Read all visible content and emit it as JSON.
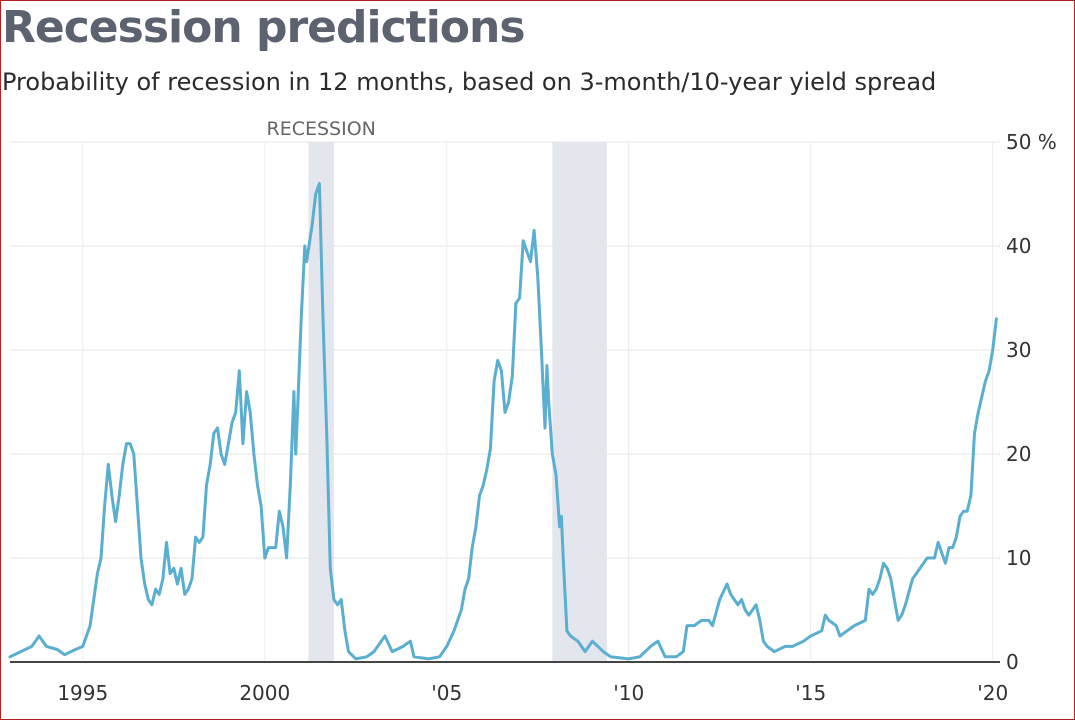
{
  "title": "Recession predictions",
  "subtitle": "Probability of recession in 12 months, based on 3-month/10-year yield spread",
  "chart_data": {
    "type": "line",
    "title": "Recession predictions",
    "subtitle": "Probability of recession in 12 months, based on 3-month/10-year yield spread",
    "xlim": [
      1993,
      2020.2
    ],
    "ylim": [
      0,
      50
    ],
    "grid": true,
    "legend": "none",
    "line_color": "#5aaed0",
    "shade_color": "#e4e6ed",
    "x_ticks": [
      {
        "value": 1995,
        "label": "1995"
      },
      {
        "value": 2000,
        "label": "2000"
      },
      {
        "value": 2005,
        "label": "'05"
      },
      {
        "value": 2010,
        "label": "'10"
      },
      {
        "value": 2015,
        "label": "'15"
      },
      {
        "value": 2020,
        "label": "'20"
      }
    ],
    "y_ticks": [
      {
        "value": 0,
        "label": "0"
      },
      {
        "value": 10,
        "label": "10"
      },
      {
        "value": 20,
        "label": "20"
      },
      {
        "value": 30,
        "label": "30"
      },
      {
        "value": 40,
        "label": "40"
      },
      {
        "value": 50,
        "label": "50 %"
      }
    ],
    "recessions": [
      {
        "start": 2001.2,
        "end": 2001.9,
        "label": "RECESSION"
      },
      {
        "start": 2007.9,
        "end": 2009.4,
        "label": ""
      }
    ],
    "series": [
      {
        "points": [
          [
            1993.0,
            0.5
          ],
          [
            1993.3,
            1
          ],
          [
            1993.6,
            1.5
          ],
          [
            1993.8,
            2.5
          ],
          [
            1994.0,
            1.5
          ],
          [
            1994.3,
            1.2
          ],
          [
            1994.5,
            0.7
          ],
          [
            1994.8,
            1.2
          ],
          [
            1995.0,
            1.5
          ],
          [
            1995.2,
            3.5
          ],
          [
            1995.4,
            8.5
          ],
          [
            1995.5,
            10
          ],
          [
            1995.6,
            15
          ],
          [
            1995.7,
            19
          ],
          [
            1995.8,
            16
          ],
          [
            1995.9,
            13.5
          ],
          [
            1996.0,
            16
          ],
          [
            1996.1,
            19
          ],
          [
            1996.2,
            21
          ],
          [
            1996.3,
            21
          ],
          [
            1996.4,
            20
          ],
          [
            1996.5,
            15
          ],
          [
            1996.6,
            10
          ],
          [
            1996.7,
            7.5
          ],
          [
            1996.8,
            6
          ],
          [
            1996.9,
            5.5
          ],
          [
            1997.0,
            7
          ],
          [
            1997.1,
            6.5
          ],
          [
            1997.2,
            8
          ],
          [
            1997.3,
            11.5
          ],
          [
            1997.4,
            8.5
          ],
          [
            1997.5,
            9
          ],
          [
            1997.6,
            7.5
          ],
          [
            1997.7,
            9
          ],
          [
            1997.8,
            6.5
          ],
          [
            1997.9,
            7
          ],
          [
            1998.0,
            8
          ],
          [
            1998.1,
            12
          ],
          [
            1998.2,
            11.5
          ],
          [
            1998.3,
            12
          ],
          [
            1998.4,
            17
          ],
          [
            1998.5,
            19
          ],
          [
            1998.6,
            22
          ],
          [
            1998.7,
            22.5
          ],
          [
            1998.8,
            20
          ],
          [
            1998.9,
            19
          ],
          [
            1999.0,
            21
          ],
          [
            1999.1,
            23
          ],
          [
            1999.2,
            24
          ],
          [
            1999.3,
            28
          ],
          [
            1999.4,
            21
          ],
          [
            1999.5,
            26
          ],
          [
            1999.6,
            24
          ],
          [
            1999.7,
            20
          ],
          [
            1999.8,
            17
          ],
          [
            1999.9,
            15
          ],
          [
            2000.0,
            10
          ],
          [
            2000.1,
            11
          ],
          [
            2000.3,
            11
          ],
          [
            2000.4,
            14.5
          ],
          [
            2000.5,
            13
          ],
          [
            2000.6,
            10
          ],
          [
            2000.7,
            17
          ],
          [
            2000.8,
            26
          ],
          [
            2000.85,
            20
          ],
          [
            2000.9,
            24
          ],
          [
            2001.0,
            33
          ],
          [
            2001.1,
            40
          ],
          [
            2001.15,
            38.5
          ],
          [
            2001.3,
            42
          ],
          [
            2001.4,
            45
          ],
          [
            2001.5,
            46
          ],
          [
            2001.6,
            33
          ],
          [
            2001.7,
            22
          ],
          [
            2001.8,
            9
          ],
          [
            2001.9,
            6
          ],
          [
            2002.0,
            5.5
          ],
          [
            2002.1,
            6
          ],
          [
            2002.2,
            3
          ],
          [
            2002.3,
            1
          ],
          [
            2002.5,
            0.3
          ],
          [
            2002.8,
            0.5
          ],
          [
            2003.0,
            1
          ],
          [
            2003.3,
            2.5
          ],
          [
            2003.5,
            1
          ],
          [
            2003.8,
            1.5
          ],
          [
            2004.0,
            2
          ],
          [
            2004.1,
            0.5
          ],
          [
            2004.5,
            0.3
          ],
          [
            2004.8,
            0.5
          ],
          [
            2005.0,
            1.5
          ],
          [
            2005.2,
            3
          ],
          [
            2005.4,
            5
          ],
          [
            2005.5,
            7
          ],
          [
            2005.6,
            8
          ],
          [
            2005.7,
            11
          ],
          [
            2005.8,
            13
          ],
          [
            2005.9,
            16
          ],
          [
            2006.0,
            17
          ],
          [
            2006.1,
            18.5
          ],
          [
            2006.2,
            20.5
          ],
          [
            2006.3,
            27
          ],
          [
            2006.4,
            29
          ],
          [
            2006.5,
            28
          ],
          [
            2006.6,
            24
          ],
          [
            2006.7,
            25
          ],
          [
            2006.8,
            27.5
          ],
          [
            2006.9,
            34.5
          ],
          [
            2007.0,
            35
          ],
          [
            2007.1,
            40.5
          ],
          [
            2007.2,
            39.5
          ],
          [
            2007.3,
            38.5
          ],
          [
            2007.4,
            41.5
          ],
          [
            2007.5,
            37
          ],
          [
            2007.6,
            30
          ],
          [
            2007.7,
            22.5
          ],
          [
            2007.75,
            28.5
          ],
          [
            2007.8,
            25
          ],
          [
            2007.9,
            20
          ],
          [
            2008.0,
            18
          ],
          [
            2008.1,
            13
          ],
          [
            2008.15,
            14
          ],
          [
            2008.2,
            10
          ],
          [
            2008.3,
            3
          ],
          [
            2008.4,
            2.5
          ],
          [
            2008.6,
            2
          ],
          [
            2008.8,
            1
          ],
          [
            2009.0,
            2
          ],
          [
            2009.3,
            1
          ],
          [
            2009.5,
            0.5
          ],
          [
            2010.0,
            0.3
          ],
          [
            2010.3,
            0.5
          ],
          [
            2010.6,
            1.5
          ],
          [
            2010.8,
            2
          ],
          [
            2011.0,
            0.5
          ],
          [
            2011.3,
            0.5
          ],
          [
            2011.5,
            1
          ],
          [
            2011.6,
            3.5
          ],
          [
            2011.8,
            3.5
          ],
          [
            2012.0,
            4
          ],
          [
            2012.2,
            4
          ],
          [
            2012.3,
            3.5
          ],
          [
            2012.5,
            6
          ],
          [
            2012.7,
            7.5
          ],
          [
            2012.8,
            6.5
          ],
          [
            2012.9,
            6
          ],
          [
            2013.0,
            5.5
          ],
          [
            2013.1,
            6
          ],
          [
            2013.2,
            5
          ],
          [
            2013.3,
            4.5
          ],
          [
            2013.5,
            5.5
          ],
          [
            2013.6,
            4
          ],
          [
            2013.7,
            2
          ],
          [
            2013.8,
            1.5
          ],
          [
            2014.0,
            1
          ],
          [
            2014.3,
            1.5
          ],
          [
            2014.5,
            1.5
          ],
          [
            2014.8,
            2
          ],
          [
            2015.0,
            2.5
          ],
          [
            2015.3,
            3
          ],
          [
            2015.4,
            4.5
          ],
          [
            2015.5,
            4
          ],
          [
            2015.7,
            3.5
          ],
          [
            2015.8,
            2.5
          ],
          [
            2016.0,
            3
          ],
          [
            2016.2,
            3.5
          ],
          [
            2016.5,
            4
          ],
          [
            2016.6,
            7
          ],
          [
            2016.7,
            6.5
          ],
          [
            2016.8,
            7
          ],
          [
            2016.9,
            8
          ],
          [
            2017.0,
            9.5
          ],
          [
            2017.1,
            9
          ],
          [
            2017.2,
            8
          ],
          [
            2017.3,
            6
          ],
          [
            2017.4,
            4
          ],
          [
            2017.5,
            4.5
          ],
          [
            2017.6,
            5.5
          ],
          [
            2017.8,
            8
          ],
          [
            2018.0,
            9
          ],
          [
            2018.2,
            10
          ],
          [
            2018.4,
            10
          ],
          [
            2018.5,
            11.5
          ],
          [
            2018.7,
            9.5
          ],
          [
            2018.8,
            11
          ],
          [
            2018.9,
            11
          ],
          [
            2019.0,
            12
          ],
          [
            2019.1,
            14
          ],
          [
            2019.2,
            14.5
          ],
          [
            2019.3,
            14.5
          ],
          [
            2019.4,
            16
          ],
          [
            2019.5,
            22
          ],
          [
            2019.6,
            24
          ],
          [
            2019.8,
            27
          ],
          [
            2019.9,
            28
          ],
          [
            2020.0,
            30
          ],
          [
            2020.1,
            33
          ]
        ]
      }
    ]
  }
}
